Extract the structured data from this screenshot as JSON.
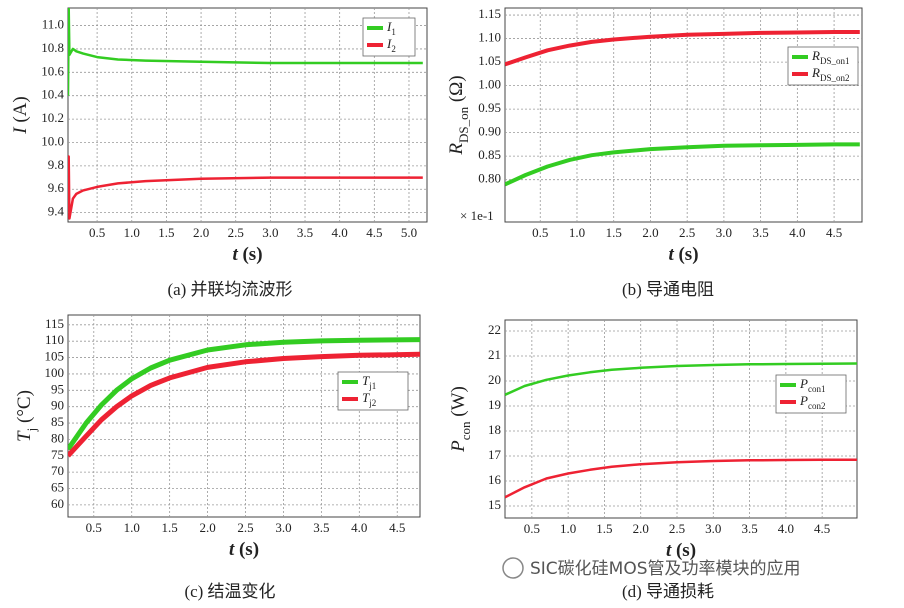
{
  "watermark": "SIC碳化硅MOS管及功率模块的应用",
  "chart_data": [
    {
      "type": "line",
      "caption": "(a) 并联均流波形",
      "xlabel": "t (s)",
      "ylabel": "I (A)",
      "grid": true,
      "x": [
        0.08,
        0.09,
        0.1,
        0.15,
        0.2,
        0.3,
        0.5,
        0.8,
        1.2,
        2,
        3,
        4,
        5.2
      ],
      "series": [
        {
          "name": "I1",
          "color": "#33cc22",
          "values": [
            10.4,
            11.15,
            10.75,
            10.8,
            10.78,
            10.76,
            10.73,
            10.71,
            10.7,
            10.69,
            10.68,
            10.68,
            10.68
          ]
        },
        {
          "name": "I2",
          "color": "#ee2233",
          "values": [
            9.65,
            9.88,
            9.35,
            9.52,
            9.56,
            9.59,
            9.62,
            9.65,
            9.67,
            9.69,
            9.7,
            9.7,
            9.7
          ]
        }
      ],
      "xlim": [
        0.08,
        5.26
      ],
      "ylim": [
        9.32,
        11.15
      ],
      "xticks": [
        0.5,
        {
          "value": 1,
          "label": "1.0"
        },
        1.5,
        {
          "value": 2,
          "label": "2.0"
        },
        2.5,
        {
          "value": 3,
          "label": "3.0"
        },
        3.5,
        {
          "value": 4,
          "label": "4.0"
        },
        4.5,
        {
          "value": 5,
          "label": "5.0"
        }
      ],
      "yticks": [
        9.4,
        9.6,
        9.8,
        {
          "value": 10,
          "label": "10.0"
        },
        10.2,
        10.4,
        10.6,
        10.8,
        {
          "value": 11,
          "label": "11.0"
        }
      ]
    },
    {
      "type": "line",
      "caption": "(b) 导通电阻",
      "xlabel": "t (s)",
      "ylabel": "RDS_on (Ω)",
      "annotation": "× 1e-1",
      "grid": true,
      "x": [
        0.02,
        0.3,
        0.6,
        0.9,
        1.2,
        1.5,
        2,
        2.5,
        3,
        3.5,
        4,
        4.5,
        4.85
      ],
      "series": [
        {
          "name": "RDS_on1",
          "color": "#33cc22",
          "values": [
            0.79,
            0.81,
            0.828,
            0.842,
            0.852,
            0.858,
            0.865,
            0.869,
            0.872,
            0.873,
            0.874,
            0.875,
            0.875
          ]
        },
        {
          "name": "RDS_on2",
          "color": "#ee2233",
          "values": [
            1.045,
            1.06,
            1.075,
            1.085,
            1.093,
            1.098,
            1.104,
            1.108,
            1.11,
            1.112,
            1.113,
            1.114,
            1.114
          ]
        }
      ],
      "xlim": [
        0.02,
        4.88
      ],
      "ylim": [
        0.71,
        1.165
      ],
      "xticks": [
        0.5,
        {
          "value": 1,
          "label": "1.0"
        },
        1.5,
        {
          "value": 2,
          "label": "2.0"
        },
        2.5,
        {
          "value": 3,
          "label": "3.0"
        },
        3.5,
        {
          "value": 4,
          "label": "4.0"
        },
        4.5
      ],
      "yticks": [
        {
          "value": 0.8,
          "label": "0.80"
        },
        0.85,
        {
          "value": 0.9,
          "label": "0.90"
        },
        0.95,
        {
          "value": 1,
          "label": "1.00"
        },
        1.05,
        {
          "value": 1.1,
          "label": "1.10"
        },
        1.15
      ]
    },
    {
      "type": "line",
      "caption": "(c) 结温变化",
      "xlabel": "t (s)",
      "ylabel": "Tj (°C)",
      "grid": true,
      "x": [
        0.16,
        0.4,
        0.6,
        0.8,
        1,
        1.25,
        1.5,
        2,
        2.5,
        3,
        3.5,
        4,
        4.8
      ],
      "series": [
        {
          "name": "Tj1",
          "color": "#33cc22",
          "values": [
            77,
            85,
            90.5,
            95,
            98.5,
            101.8,
            104.2,
            107.3,
            108.9,
            109.7,
            110.1,
            110.3,
            110.5
          ]
        },
        {
          "name": "Tj2",
          "color": "#ee2233",
          "values": [
            75,
            81,
            86,
            90,
            93.3,
            96.5,
            98.8,
            102,
            103.7,
            104.7,
            105.3,
            105.7,
            106
          ]
        }
      ],
      "xlim": [
        0.16,
        4.8
      ],
      "ylim": [
        56.3,
        118
      ],
      "xticks": [
        0.5,
        {
          "value": 1,
          "label": "1.0"
        },
        1.5,
        {
          "value": 2,
          "label": "2.0"
        },
        2.5,
        {
          "value": 3,
          "label": "3.0"
        },
        3.5,
        {
          "value": 4,
          "label": "4.0"
        },
        4.5
      ],
      "yticks": [
        60,
        65,
        70,
        75,
        80,
        85,
        90,
        95,
        100,
        105,
        110,
        115
      ]
    },
    {
      "type": "line",
      "caption": "(d) 导通损耗",
      "xlabel": "t (s)",
      "ylabel": "Pcon (W)",
      "grid": true,
      "x": [
        0.13,
        0.4,
        0.7,
        1,
        1.3,
        1.6,
        2,
        2.5,
        3,
        3.5,
        4,
        4.5,
        4.98
      ],
      "series": [
        {
          "name": "Pcon1",
          "color": "#33cc22",
          "values": [
            19.45,
            19.8,
            20.05,
            20.22,
            20.35,
            20.45,
            20.53,
            20.6,
            20.64,
            20.67,
            20.68,
            20.69,
            20.7
          ]
        },
        {
          "name": "Pcon2",
          "color": "#ee2233",
          "values": [
            15.35,
            15.75,
            16.1,
            16.3,
            16.45,
            16.57,
            16.67,
            16.75,
            16.8,
            16.83,
            16.84,
            16.85,
            16.85
          ]
        }
      ],
      "xlim": [
        0.13,
        4.98
      ],
      "ylim": [
        14.52,
        22.44
      ],
      "xticks": [
        0.5,
        {
          "value": 1,
          "label": "1.0"
        },
        1.5,
        {
          "value": 2,
          "label": "2.0"
        },
        2.5,
        {
          "value": 3,
          "label": "3.0"
        },
        3.5,
        {
          "value": 4,
          "label": "4.0"
        },
        4.5
      ],
      "yticks": [
        15,
        16,
        17,
        18,
        19,
        20,
        21,
        22
      ]
    }
  ]
}
